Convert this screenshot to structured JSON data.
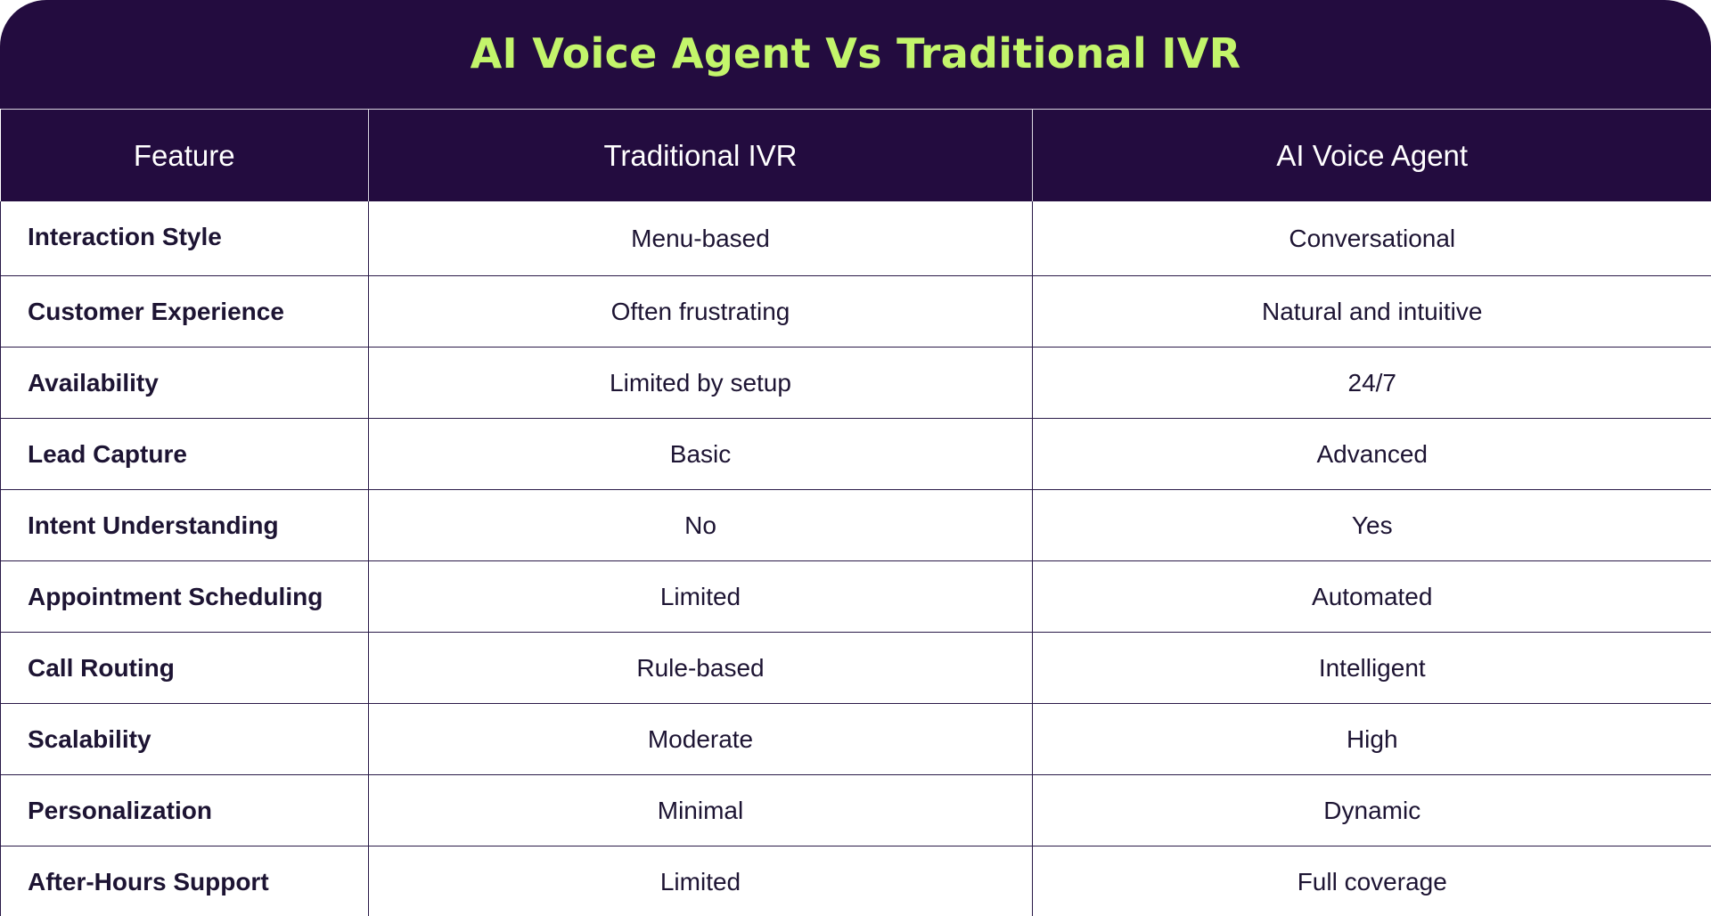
{
  "title": "AI Voice Agent Vs Traditional IVR",
  "colors": {
    "header_background": "#230c3f",
    "title_text": "#c3f56b",
    "header_text": "#ffffff",
    "body_text": "#1d1433",
    "grid_line": "#2a1a48"
  },
  "table": {
    "headers": [
      "Feature",
      "Traditional IVR",
      "AI Voice Agent"
    ],
    "rows": [
      [
        "Interaction Style",
        "Menu-based",
        "Conversational"
      ],
      [
        "Customer Experience",
        "Often frustrating",
        "Natural and intuitive"
      ],
      [
        "Availability",
        "Limited by setup",
        "24/7"
      ],
      [
        "Lead Capture",
        "Basic",
        "Advanced"
      ],
      [
        "Intent Understanding",
        "No",
        "Yes"
      ],
      [
        "Appointment Scheduling",
        "Limited",
        "Automated"
      ],
      [
        "Call Routing",
        "Rule-based",
        "Intelligent"
      ],
      [
        "Scalability",
        "Moderate",
        "High"
      ],
      [
        "Personalization",
        "Minimal",
        "Dynamic"
      ],
      [
        "After-Hours Support",
        "Limited",
        "Full coverage"
      ]
    ]
  }
}
